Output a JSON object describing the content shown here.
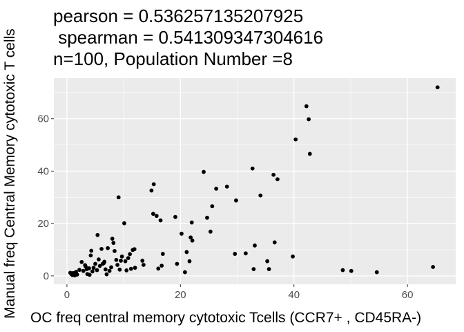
{
  "chart_data": {
    "type": "scatter",
    "title_lines": [
      "pearson = 0.536257135207925",
      " spearman = 0.541309347304616",
      "n=100, Population Number =8"
    ],
    "xlabel": "OC freq central memory cytotoxic Tcells (CCR7+ , CD45RA-)",
    "ylabel": "Manual freq Central Memory cytotoxic T cells",
    "xlim": [
      -2.3,
      68.5
    ],
    "ylim": [
      -3.2,
      75.5
    ],
    "x_ticks": [
      0,
      20,
      40,
      60
    ],
    "y_ticks": [
      0,
      20,
      40,
      60
    ],
    "grid": true,
    "colors": {
      "panel": "#ebebeb",
      "grid": "#ffffff",
      "point": "#000000"
    },
    "points": [
      [
        0.6,
        1.2
      ],
      [
        0.8,
        0.6
      ],
      [
        1.0,
        0.3
      ],
      [
        1.2,
        0.9
      ],
      [
        1.4,
        0.2
      ],
      [
        1.6,
        1.5
      ],
      [
        1.8,
        0.5
      ],
      [
        2.2,
        2.3
      ],
      [
        2.6,
        5.3
      ],
      [
        2.9,
        1.9
      ],
      [
        3.3,
        3.6
      ],
      [
        3.6,
        0.7
      ],
      [
        3.9,
        2.9
      ],
      [
        4.0,
        0.4
      ],
      [
        4.2,
        7.8
      ],
      [
        4.3,
        9.6
      ],
      [
        4.5,
        1.7
      ],
      [
        4.7,
        3.1
      ],
      [
        5.0,
        4.6
      ],
      [
        5.3,
        2.2
      ],
      [
        5.4,
        15.6
      ],
      [
        5.6,
        6.3
      ],
      [
        5.8,
        3.8
      ],
      [
        6.1,
        10.3
      ],
      [
        6.3,
        4.6
      ],
      [
        6.6,
        5.4
      ],
      [
        6.8,
        2.5
      ],
      [
        7.0,
        0.6
      ],
      [
        7.2,
        10.6
      ],
      [
        7.5,
        1.9
      ],
      [
        7.8,
        3.3
      ],
      [
        8.0,
        14.2
      ],
      [
        8.2,
        12.6
      ],
      [
        8.4,
        9.5
      ],
      [
        8.7,
        6.1
      ],
      [
        8.9,
        4.2
      ],
      [
        9.1,
        30.0
      ],
      [
        9.3,
        2.4
      ],
      [
        9.5,
        5.8
      ],
      [
        9.7,
        7.4
      ],
      [
        10.1,
        20.1
      ],
      [
        10.3,
        5.6
      ],
      [
        10.5,
        2.1
      ],
      [
        10.8,
        6.8
      ],
      [
        11.1,
        8.3
      ],
      [
        11.3,
        2.7
      ],
      [
        11.6,
        9.9
      ],
      [
        12.0,
        3.1
      ],
      [
        13.3,
        5.8
      ],
      [
        13.5,
        4.2
      ],
      [
        14.9,
        32.6
      ],
      [
        15.3,
        35.0
      ],
      [
        15.2,
        23.7
      ],
      [
        15.8,
        22.9
      ],
      [
        16.1,
        2.8
      ],
      [
        16.5,
        21.2
      ],
      [
        16.7,
        3.9
      ],
      [
        16.9,
        8.4
      ],
      [
        19.1,
        22.5
      ],
      [
        19.4,
        4.6
      ],
      [
        20.2,
        16.1
      ],
      [
        20.8,
        1.4
      ],
      [
        21.1,
        9.1
      ],
      [
        21.6,
        5.6
      ],
      [
        21.8,
        14.7
      ],
      [
        22.0,
        20.4
      ],
      [
        22.1,
        13.5
      ],
      [
        24.1,
        39.7
      ],
      [
        24.7,
        22.2
      ],
      [
        25.3,
        16.9
      ],
      [
        25.6,
        26.6
      ],
      [
        26.3,
        33.3
      ],
      [
        28.2,
        34.1
      ],
      [
        29.6,
        8.4
      ],
      [
        29.8,
        28.8
      ],
      [
        31.5,
        8.6
      ],
      [
        32.7,
        41.0
      ],
      [
        33.1,
        11.6
      ],
      [
        32.9,
        2.6
      ],
      [
        34.1,
        30.7
      ],
      [
        35.3,
        5.6
      ],
      [
        35.6,
        2.6
      ],
      [
        36.4,
        38.6
      ],
      [
        36.6,
        12.8
      ],
      [
        37.1,
        36.9
      ],
      [
        39.8,
        7.4
      ],
      [
        40.3,
        52.1
      ],
      [
        42.2,
        64.8
      ],
      [
        42.6,
        59.8
      ],
      [
        42.8,
        46.6
      ],
      [
        48.6,
        2.2
      ],
      [
        50.1,
        1.9
      ],
      [
        54.6,
        1.4
      ],
      [
        64.5,
        3.4
      ],
      [
        65.3,
        72.0
      ],
      [
        1.1,
        1.1
      ],
      [
        3.2,
        4.1
      ],
      [
        6.5,
        4.9
      ],
      [
        11.9,
        10.2
      ],
      [
        3.5,
        2.6
      ]
    ]
  }
}
